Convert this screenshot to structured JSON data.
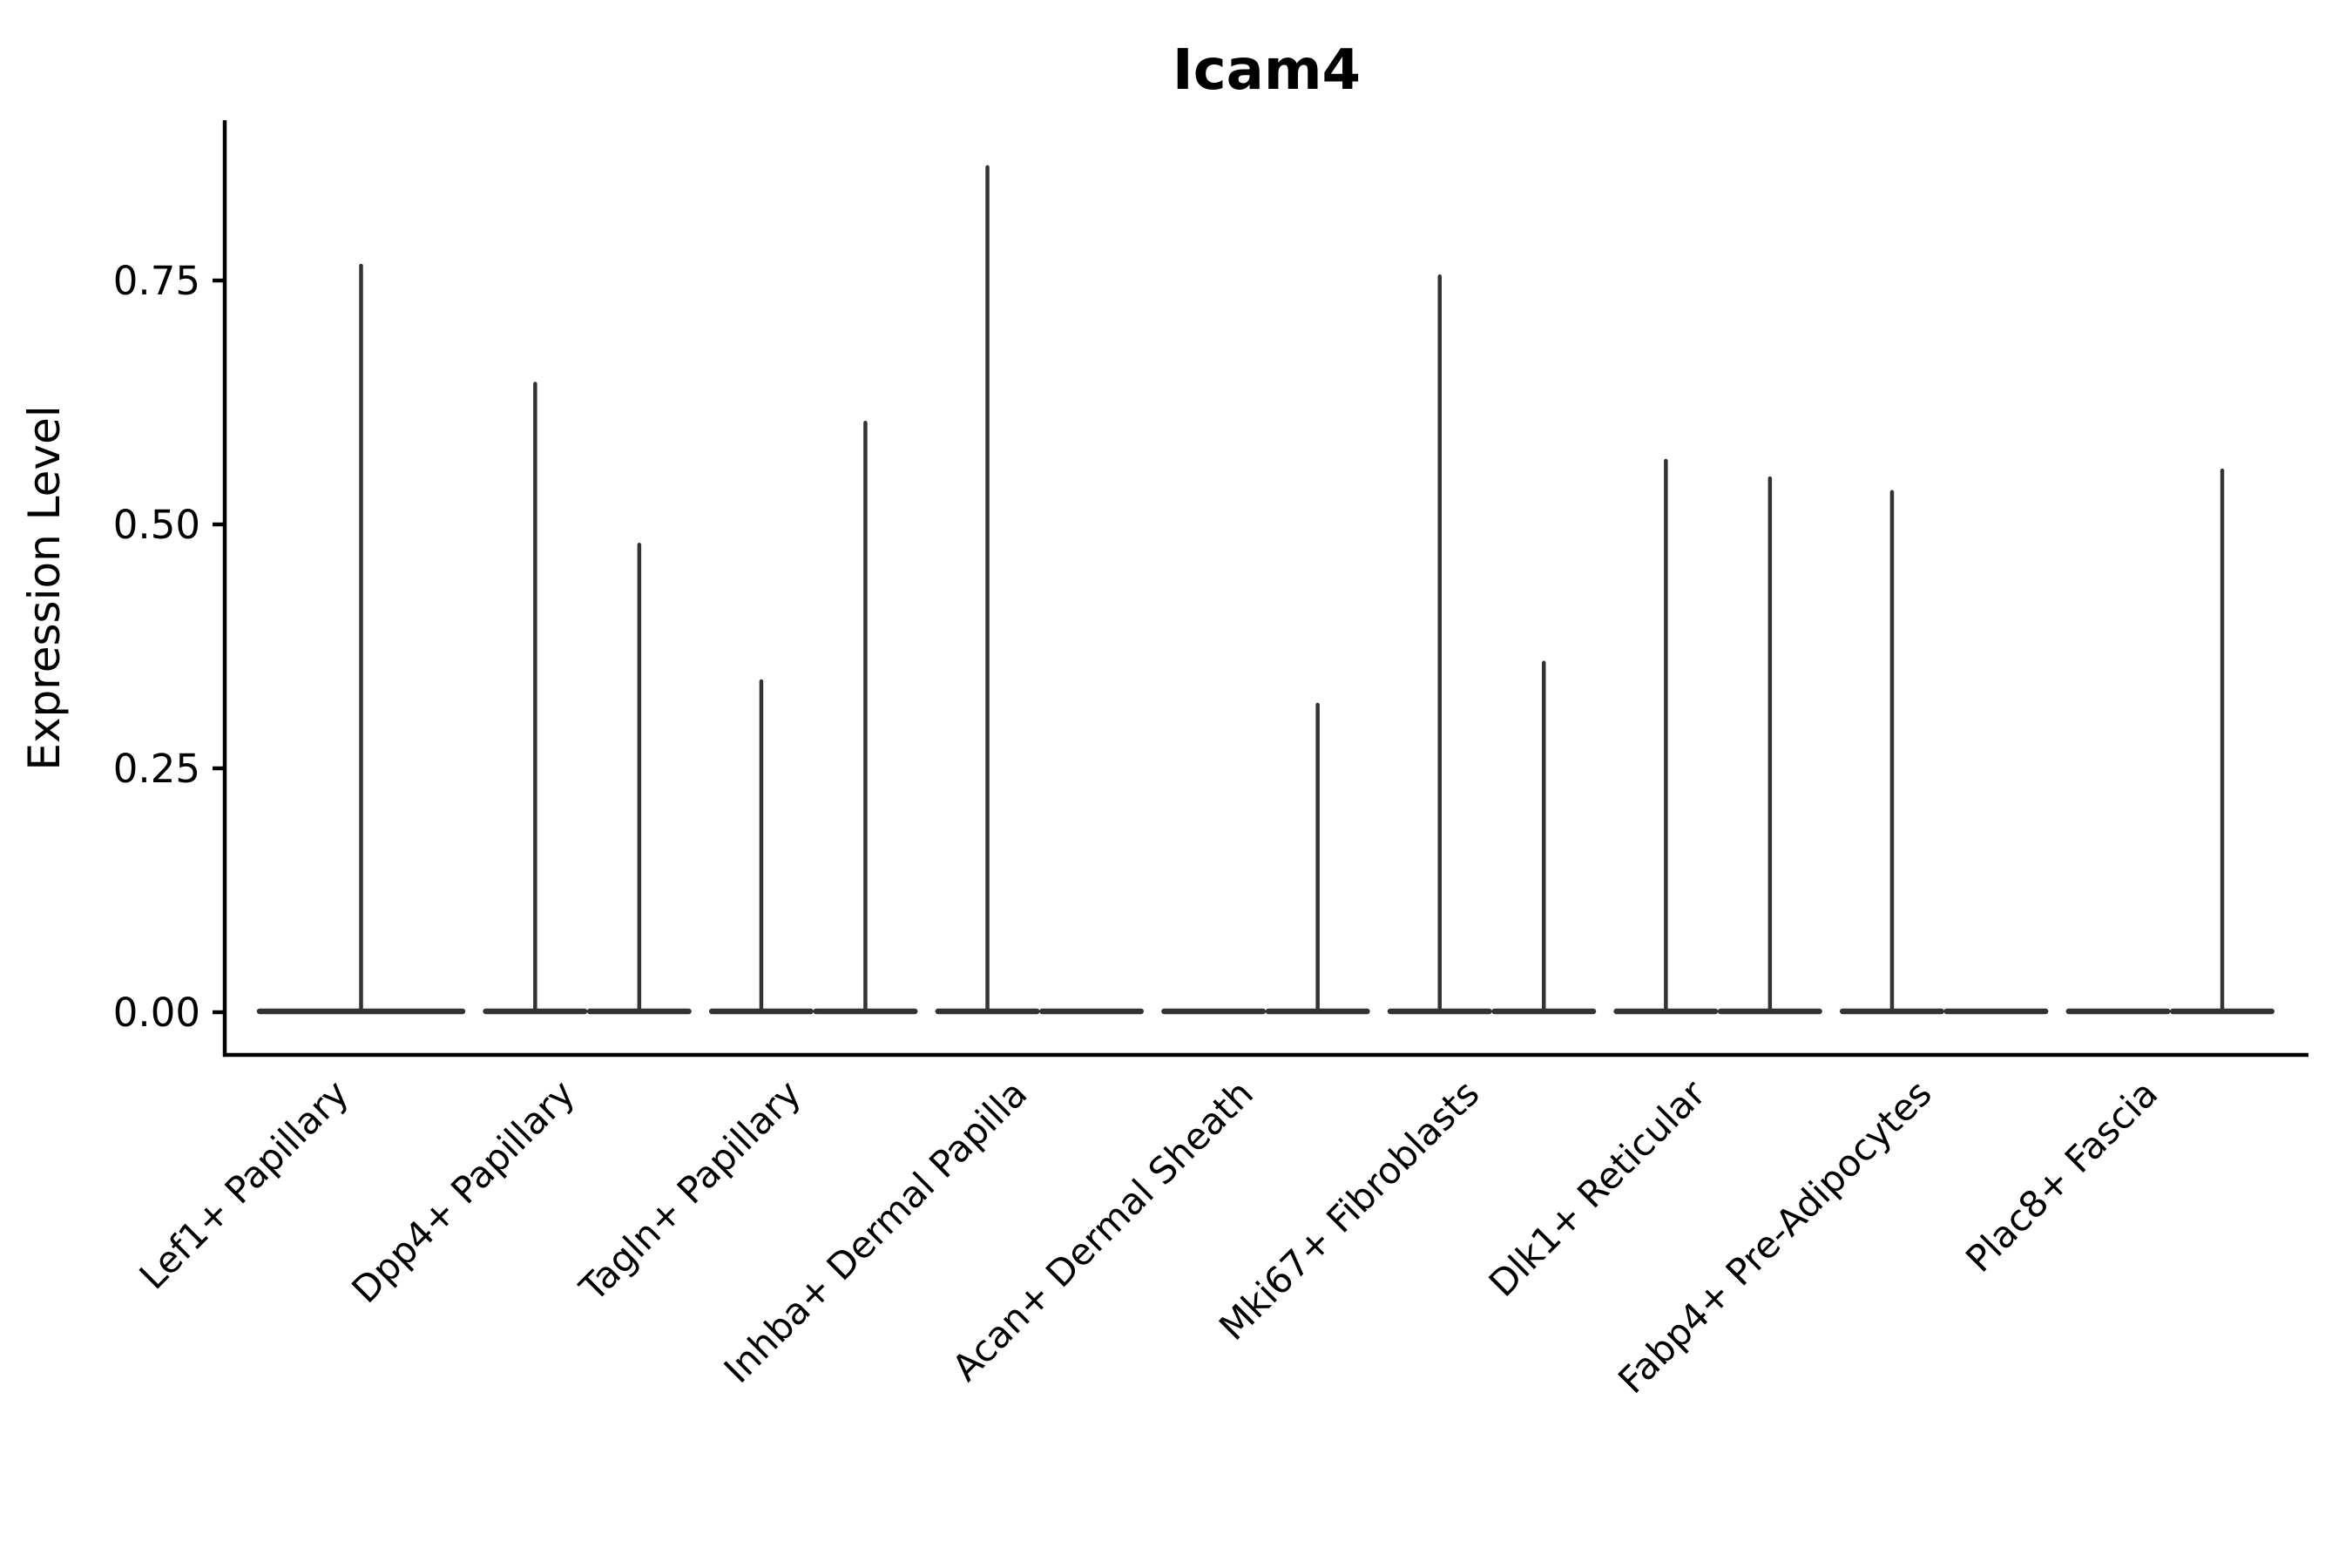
{
  "figure": {
    "background": "#ffffff",
    "axis_color": "#000000",
    "violin_color": "#333333",
    "text_color": "#000000"
  },
  "chart_data": {
    "type": "violin",
    "title": "Icam4",
    "xlabel": "",
    "ylabel": "Expression Level",
    "grid": false,
    "legend": "none",
    "ylim": [
      -0.044,
      0.914
    ],
    "yticks": [
      {
        "value": 0.0,
        "label": "0.00"
      },
      {
        "value": 0.25,
        "label": "0.25"
      },
      {
        "value": 0.5,
        "label": "0.50"
      },
      {
        "value": 0.75,
        "label": "0.75"
      }
    ],
    "categories": [
      "Lef1+ Papillary",
      "Dpp4+ Papillary",
      "Tagln+ Papillary",
      "Inhba+ Dermal Papilla",
      "Acan+ Dermal Sheath",
      "Mki67+ Fibroblasts",
      "Dlk1+ Reticular",
      "Fabp4+ Pre-Adipocytes",
      "Plac8+ Fascia"
    ],
    "note": "Each category shows thin spike violins: nearly all expression mass at 0 (flat baseline) with a narrow tail up to max expression. Groups hold two side-by-side violins (left/right); 'full' means one full-width violin. max 0 = completely flat violin.",
    "groups": [
      {
        "category": "Lef1+ Papillary",
        "violins": [
          {
            "slot": "full",
            "max": 0.767
          }
        ]
      },
      {
        "category": "Dpp4+ Papillary",
        "violins": [
          {
            "slot": "left",
            "max": 0.646
          },
          {
            "slot": "right",
            "max": 0.481
          }
        ]
      },
      {
        "category": "Tagln+ Papillary",
        "violins": [
          {
            "slot": "left",
            "max": 0.341
          },
          {
            "slot": "right",
            "max": 0.606
          }
        ]
      },
      {
        "category": "Inhba+ Dermal Papilla",
        "violins": [
          {
            "slot": "left",
            "max": 0.868
          },
          {
            "slot": "right",
            "max": 0
          }
        ]
      },
      {
        "category": "Acan+ Dermal Sheath",
        "violins": [
          {
            "slot": "left",
            "max": 0
          },
          {
            "slot": "right",
            "max": 0.317
          }
        ]
      },
      {
        "category": "Mki67+ Fibroblasts",
        "violins": [
          {
            "slot": "left",
            "max": 0.756
          },
          {
            "slot": "right",
            "max": 0.36
          }
        ]
      },
      {
        "category": "Dlk1+ Reticular",
        "violins": [
          {
            "slot": "left",
            "max": 0.567
          },
          {
            "slot": "right",
            "max": 0.549
          }
        ]
      },
      {
        "category": "Fabp4+ Pre-Adipocytes",
        "violins": [
          {
            "slot": "left",
            "max": 0.535
          },
          {
            "slot": "right",
            "max": 0
          }
        ]
      },
      {
        "category": "Plac8+ Fascia",
        "violins": [
          {
            "slot": "left",
            "max": 0
          },
          {
            "slot": "right",
            "max": 0.557
          }
        ]
      }
    ]
  }
}
